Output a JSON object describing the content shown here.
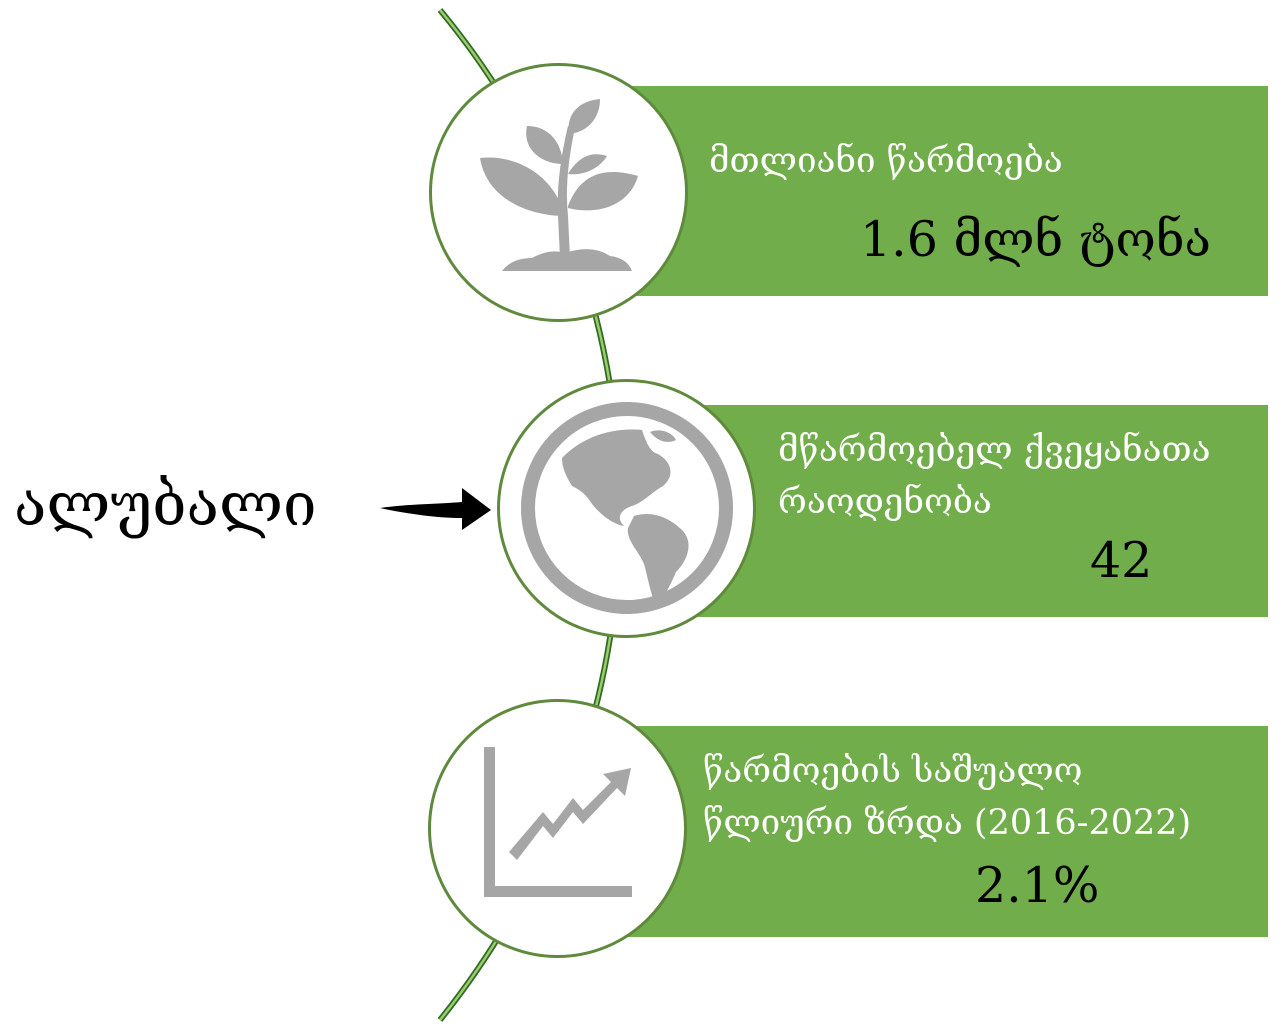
{
  "side_label": "ალუბალი",
  "items": [
    {
      "icon": "plant-icon",
      "label_lines": [
        "მთლიანი წარმოება"
      ],
      "value": "1.6 მლნ ტონა"
    },
    {
      "icon": "globe-icon",
      "label_lines": [
        "მწარმოებელ ქვეყანათა",
        "რაოდენობა"
      ],
      "value": "42"
    },
    {
      "icon": "growth-chart-icon",
      "label_lines": [
        "წარმოების საშუალო",
        "წლიური ზრდა (2016-2022)"
      ],
      "value": "2.1%"
    }
  ],
  "colors": {
    "panel": "#71ad4a",
    "outline": "#5f8a3d",
    "icon": "#a6a6a6",
    "label_text": "#ffffff",
    "value_text": "#000000"
  }
}
